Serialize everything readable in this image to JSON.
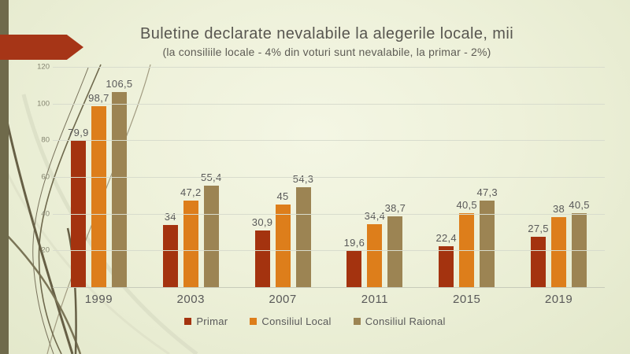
{
  "slide": {
    "title": "Buletine declarate nevalabile la alegerile locale, mii",
    "subtitle": "(la consiliile locale - 4% din voturi sunt nevalabile, la primar - 2%)"
  },
  "chart_data": {
    "type": "bar",
    "title": "Buletine declarate nevalabile la alegerile locale, mii",
    "subtitle": "(la consiliile locale - 4% din voturi sunt nevalabile, la primar - 2%)",
    "categories": [
      "1999",
      "2003",
      "2007",
      "2011",
      "2015",
      "2019"
    ],
    "series": [
      {
        "name": "Primar",
        "color": "#a4330f",
        "values": [
          79.9,
          34,
          30.9,
          19.6,
          22.4,
          27.5
        ],
        "labels": [
          "79,9",
          "34",
          "30,9",
          "19,6",
          "22,4",
          "27,5"
        ]
      },
      {
        "name": "Consiliul Local",
        "color": "#dd7e1b",
        "values": [
          98.7,
          47.2,
          45,
          34.4,
          40.5,
          38
        ],
        "labels": [
          "98,7",
          "47,2",
          "45",
          "34,4",
          "40,5",
          "38"
        ]
      },
      {
        "name": "Consiliul Raional",
        "color": "#9c8453",
        "values": [
          106.5,
          55.4,
          54.3,
          38.7,
          47.3,
          40.5
        ],
        "labels": [
          "106,5",
          "55,4",
          "54,3",
          "38,7",
          "47,3",
          "40,5"
        ]
      }
    ],
    "y_axis": {
      "min": 0,
      "max": 120,
      "step": 20,
      "tick_labels": [
        "20",
        "40",
        "60",
        "80",
        "100",
        "120"
      ]
    },
    "legend_position": "bottom",
    "grid": true
  },
  "theme": {
    "accent_arrow_color": "#a63517",
    "edge_strip_color": "#6f6a4b",
    "background_color": "#eef1da",
    "text_color": "#595959"
  }
}
